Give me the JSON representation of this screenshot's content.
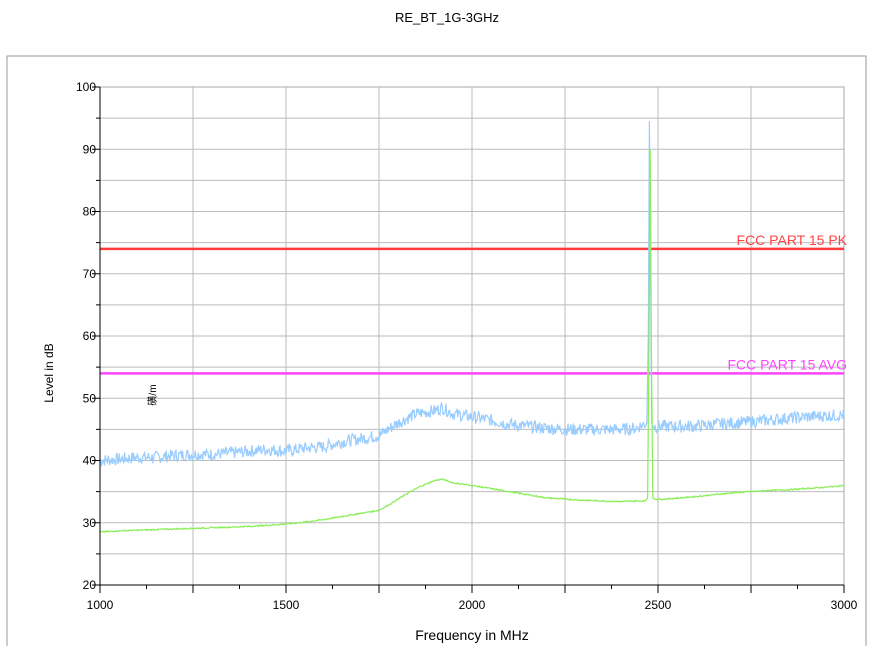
{
  "chart_data": {
    "type": "line",
    "title": "RE_BT_1G-3GHz",
    "xlabel": "Frequency in MHz",
    "ylabel": "Level in dB",
    "unit_fragment": "磺/m",
    "xlim": [
      1000,
      3000
    ],
    "ylim": [
      20,
      100
    ],
    "x_ticks": [
      1000,
      1500,
      2000,
      2500,
      3000
    ],
    "y_ticks": [
      20,
      30,
      40,
      50,
      60,
      70,
      80,
      90,
      100
    ],
    "grid": true,
    "limits": [
      {
        "name": "FCC PART 15   PK",
        "value": 74,
        "color": "#ff3b3b",
        "label_color": "#ff4444"
      },
      {
        "name": "FCC PART 15  AVG",
        "value": 54,
        "color": "#ff44ff",
        "label_color": "#ff44ff"
      }
    ],
    "series": [
      {
        "color": "#99ccff",
        "noise": 1.0,
        "x": [
          1000,
          1050,
          1100,
          1150,
          1200,
          1250,
          1300,
          1350,
          1400,
          1450,
          1500,
          1550,
          1600,
          1650,
          1700,
          1750,
          1800,
          1850,
          1900,
          1920,
          1950,
          2000,
          2050,
          2100,
          2150,
          2200,
          2250,
          2300,
          2350,
          2400,
          2440,
          2470,
          2474,
          2477,
          2480,
          2483,
          2486,
          2490,
          2520,
          2560,
          2600,
          2650,
          2700,
          2750,
          2800,
          2850,
          2900,
          2950,
          3000
        ],
        "y": [
          40,
          40.2,
          40.5,
          40.5,
          40.8,
          41,
          41,
          41.2,
          41.5,
          41.8,
          41.5,
          42,
          42.2,
          43,
          43.5,
          44,
          46,
          47.5,
          48,
          48.5,
          47.5,
          47,
          46.5,
          45.8,
          45.5,
          45.2,
          45,
          45,
          45,
          45,
          45.2,
          46,
          60,
          94.5,
          70,
          46,
          45.5,
          45.5,
          45.5,
          45.5,
          45.5,
          45.8,
          46,
          46.2,
          46.5,
          46.8,
          47,
          47.2,
          47.3
        ]
      },
      {
        "color": "#88ee55",
        "noise": 0.1,
        "x": [
          1000,
          1050,
          1100,
          1150,
          1200,
          1250,
          1300,
          1350,
          1400,
          1450,
          1500,
          1550,
          1600,
          1650,
          1700,
          1750,
          1780,
          1820,
          1860,
          1900,
          1920,
          1950,
          2000,
          2050,
          2100,
          2150,
          2200,
          2250,
          2300,
          2350,
          2400,
          2440,
          2465,
          2472,
          2476,
          2479,
          2482,
          2486,
          2490,
          2520,
          2560,
          2600,
          2650,
          2700,
          2750,
          2800,
          2850,
          2900,
          2950,
          3000
        ],
        "y": [
          28.5,
          28.7,
          28.8,
          28.9,
          29,
          29.1,
          29.2,
          29.3,
          29.4,
          29.6,
          29.8,
          30.1,
          30.5,
          31,
          31.5,
          32,
          33,
          34.5,
          35.8,
          36.8,
          37,
          36.4,
          36,
          35.5,
          35,
          34.5,
          34,
          33.8,
          33.6,
          33.5,
          33.4,
          33.5,
          33.5,
          34,
          60,
          90,
          60,
          34,
          33.8,
          33.8,
          34,
          34.2,
          34.5,
          34.8,
          35,
          35.2,
          35.3,
          35.5,
          35.7,
          36
        ]
      }
    ]
  }
}
